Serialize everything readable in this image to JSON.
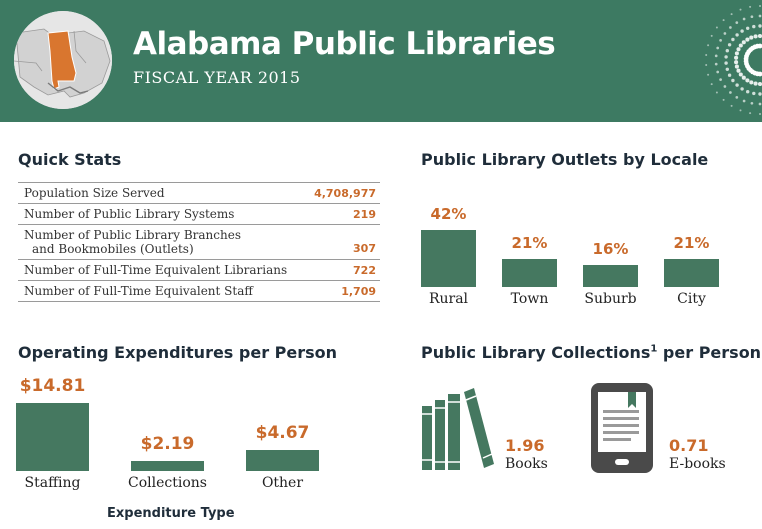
{
  "header": {
    "title": "Alabama Public Libraries",
    "subtitle": "FISCAL YEAR 2015",
    "logo_icon": "alabama-map-icon",
    "decoration_icon": "dot-burst-icon",
    "colors": {
      "header_bg": "#3d7a62",
      "state_fill": "#d9762f",
      "accent": "#c96a2b",
      "bar": "#457860"
    }
  },
  "quick_stats": {
    "title": "Quick Stats",
    "rows": [
      {
        "label": "Population Size Served",
        "value": "4,708,977"
      },
      {
        "label_line1": "Number of Public Library Systems",
        "value": "219"
      },
      {
        "label_line1": "Number of Public Library Branches",
        "label_line2": "and Bookmobiles (Outlets)",
        "value": "307"
      },
      {
        "label_line1": "Number of Full-Time Equivalent Librarians",
        "value": "722"
      },
      {
        "label_line1": "Number of Full-Time Equivalent Staff",
        "value": "1,709"
      }
    ]
  },
  "outlets": {
    "title": "Public Library Outlets by Locale",
    "items": [
      {
        "label": "Rural",
        "value_label": "42%"
      },
      {
        "label": "Town",
        "value_label": "21%"
      },
      {
        "label": "Suburb",
        "value_label": "16%"
      },
      {
        "label": "City",
        "value_label": "21%"
      }
    ]
  },
  "expenditures": {
    "title": "Operating Expenditures per Person",
    "axis_title": "Expenditure Type",
    "items": [
      {
        "label": "Staffing",
        "value_label": "$14.81"
      },
      {
        "label": "Collections",
        "value_label": "$2.19"
      },
      {
        "label": "Other",
        "value_label": "$4.67"
      }
    ]
  },
  "collections": {
    "title": "Public Library Collections",
    "title_sup": "1",
    "title_tail": " per Person",
    "books": {
      "icon": "books-icon",
      "value": "1.96",
      "label": "Books"
    },
    "ebooks": {
      "icon": "ereader-icon",
      "value": "0.71",
      "label": "E-books"
    }
  },
  "chart_data": [
    {
      "type": "bar",
      "title": "Public Library Outlets by Locale",
      "categories": [
        "Rural",
        "Town",
        "Suburb",
        "City"
      ],
      "values": [
        42,
        21,
        16,
        21
      ],
      "unit": "%"
    },
    {
      "type": "bar",
      "title": "Operating Expenditures per Person",
      "xlabel": "Expenditure Type",
      "categories": [
        "Staffing",
        "Collections",
        "Other"
      ],
      "values": [
        14.81,
        2.19,
        4.67
      ],
      "unit": "$"
    }
  ]
}
